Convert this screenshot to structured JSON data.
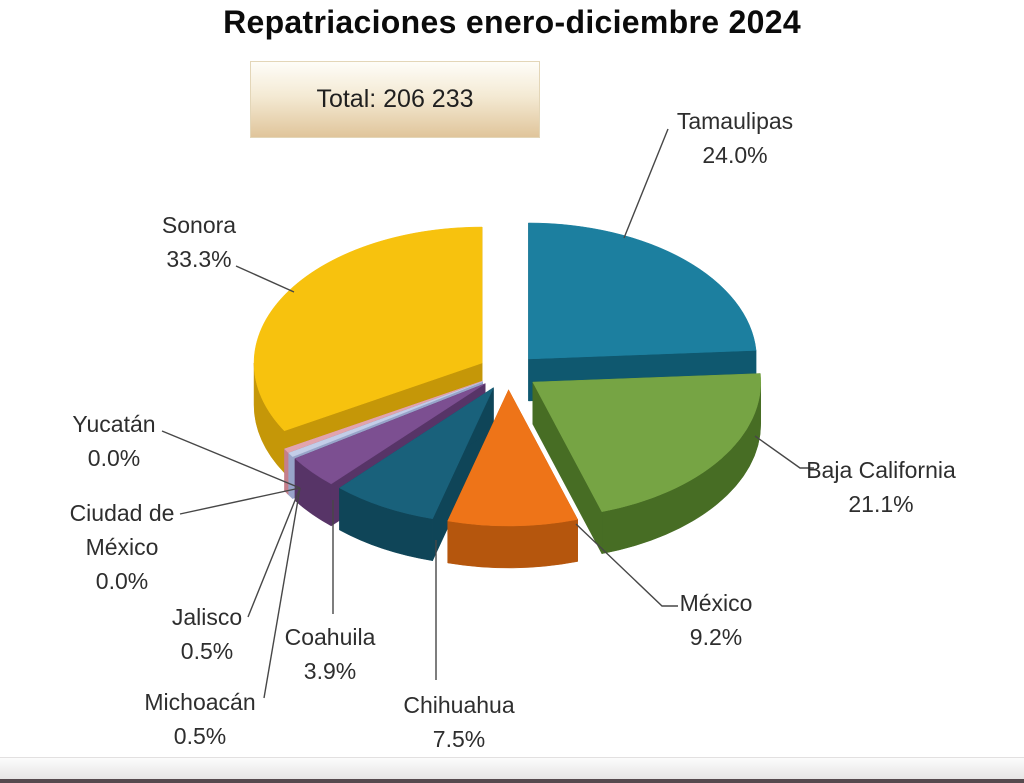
{
  "chart_data": {
    "type": "pie",
    "is_3d": true,
    "exploded": true,
    "title": "Repatriaciones enero-diciembre 2024",
    "total_box": {
      "label": "Total: 206 233",
      "value": 206233
    },
    "legend_position": "none",
    "labels_style": "outside with leader lines, name + percent",
    "slices": [
      {
        "id": "tamaulipas",
        "label": "Tamaulipas",
        "label_lines": [
          "Tamaulipas"
        ],
        "pct": 24.0,
        "pct_label": "24.0%",
        "color": "#1C7F9F",
        "side_color": "#0F586F"
      },
      {
        "id": "baja-california",
        "label": "Baja California",
        "label_lines": [
          "Baja California"
        ],
        "pct": 21.1,
        "pct_label": "21.1%",
        "color": "#76A444",
        "side_color": "#476D24"
      },
      {
        "id": "mexico",
        "label": "México",
        "label_lines": [
          "México"
        ],
        "pct": 9.2,
        "pct_label": "9.2%",
        "color": "#EE7418",
        "side_color": "#B5560D"
      },
      {
        "id": "chihuahua",
        "label": "Chihuahua",
        "label_lines": [
          "Chihuahua"
        ],
        "pct": 7.5,
        "pct_label": "7.5%",
        "color": "#19617B",
        "side_color": "#0F4558"
      },
      {
        "id": "coahuila",
        "label": "Coahuila",
        "label_lines": [
          "Coahuila"
        ],
        "pct": 3.9,
        "pct_label": "3.9%",
        "color": "#7C4F91",
        "side_color": "#573467"
      },
      {
        "id": "michoacan",
        "label": "Michoacán",
        "label_lines": [
          "Michoacán"
        ],
        "pct": 0.5,
        "pct_label": "0.5%",
        "color": "#C3CDE8",
        "side_color": "#98A4C9"
      },
      {
        "id": "jalisco",
        "label": "Jalisco",
        "label_lines": [
          "Jalisco"
        ],
        "pct": 0.5,
        "pct_label": "0.5%",
        "color": "#E2A4AE",
        "side_color": "#C57F8B"
      },
      {
        "id": "ciudad-de-mexico",
        "label": "Ciudad de México",
        "label_lines": [
          "Ciudad de",
          "México"
        ],
        "pct": 0.0,
        "pct_label": "0.0%",
        "color": "#D9C7E4",
        "side_color": "#B3A0C2"
      },
      {
        "id": "yucatan",
        "label": "Yucatán",
        "label_lines": [
          "Yucatán"
        ],
        "pct": 0.0,
        "pct_label": "0.0%",
        "color": "#EFC2CA",
        "side_color": "#CC9AA4"
      },
      {
        "id": "sonora",
        "label": "Sonora",
        "label_lines": [
          "Sonora"
        ],
        "pct": 33.3,
        "pct_label": "33.3%",
        "color": "#F7C20E",
        "side_color": "#C59708"
      }
    ],
    "colors": {
      "background": "#ffffff",
      "leader_line": "#474747",
      "label_text": "#2e2e2e",
      "title_text": "#0b0b0b",
      "total_box_bg_top": "#fefdf8",
      "total_box_bg_bottom": "#e0c59b",
      "total_box_border": "#e3d6b8",
      "bottom_band_top": "#fcfcfc",
      "bottom_band_bottom": "#e7e5e5",
      "bottom_edge_line": "#564a4e"
    }
  }
}
